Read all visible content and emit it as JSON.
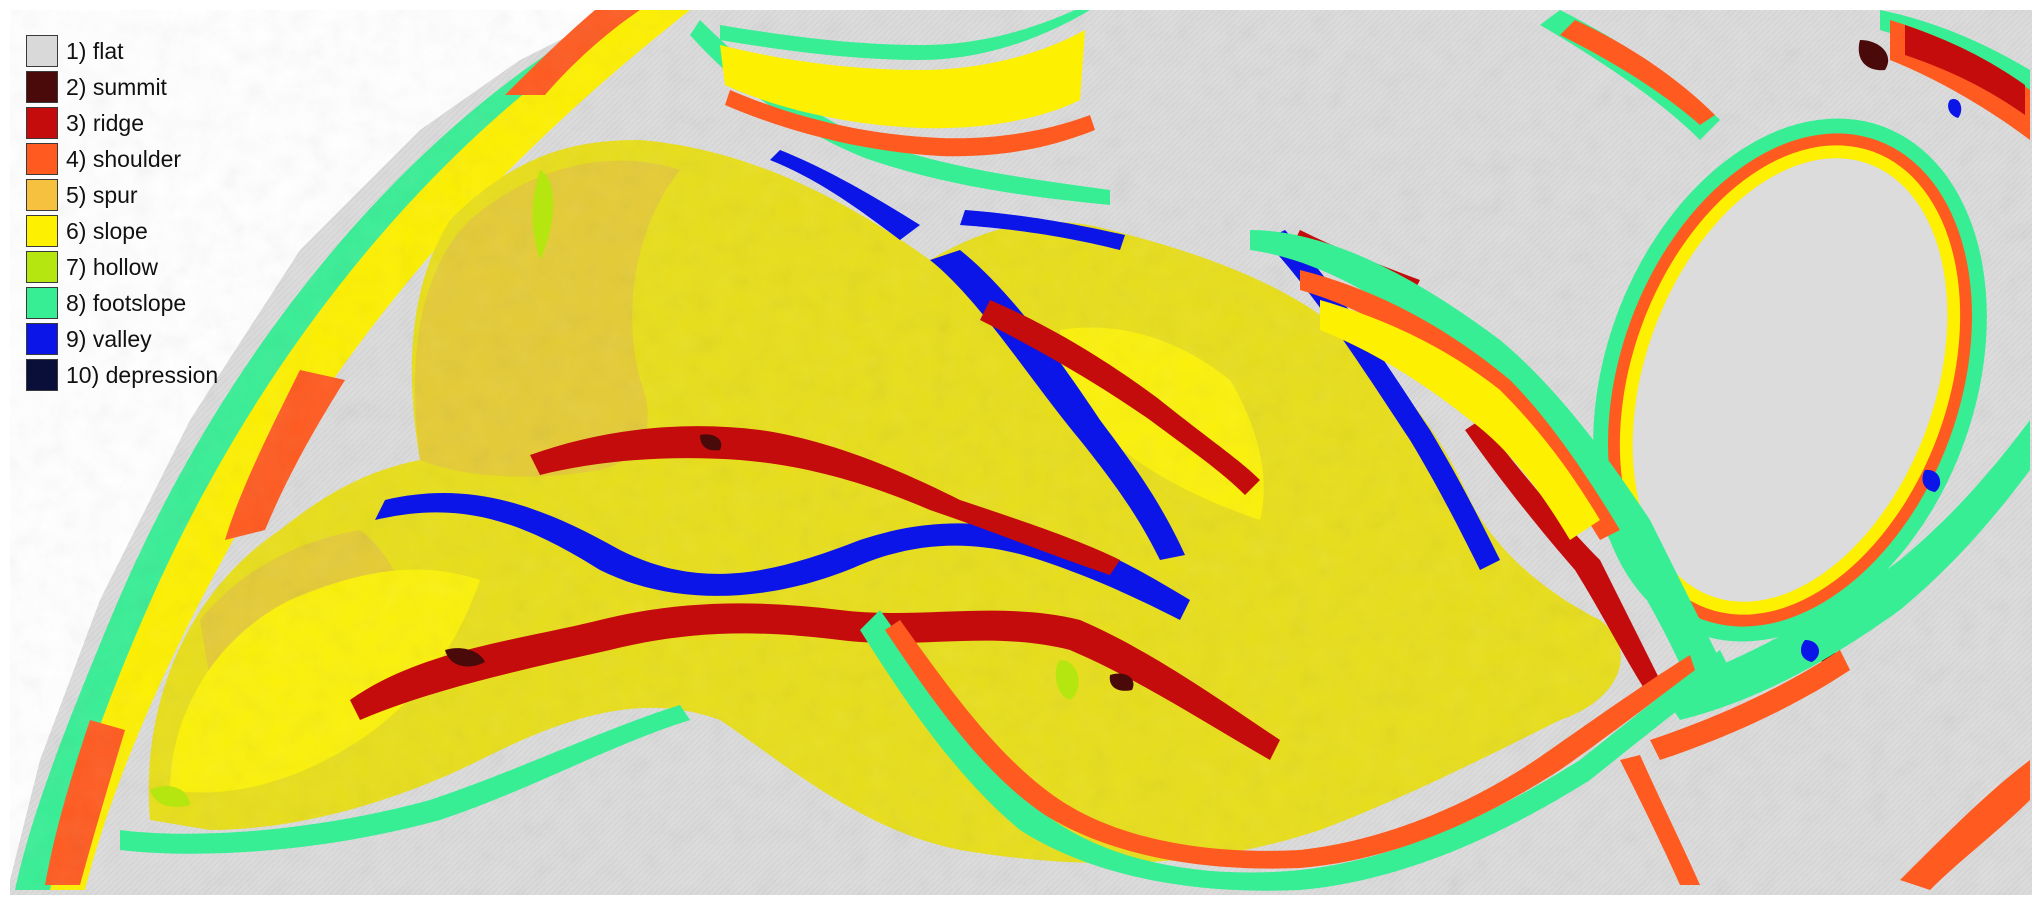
{
  "legend": {
    "items": [
      {
        "label": "1) flat",
        "color": "#d9d9d9"
      },
      {
        "label": "2) summit",
        "color": "#4a0a0a"
      },
      {
        "label": "3) ridge",
        "color": "#c40c0c"
      },
      {
        "label": "4) shoulder",
        "color": "#ff5a1f"
      },
      {
        "label": "5) spur",
        "color": "#f6c13f"
      },
      {
        "label": "6) slope",
        "color": "#fdf000"
      },
      {
        "label": "7) hollow",
        "color": "#b6e60f"
      },
      {
        "label": "8) footslope",
        "color": "#38ee95"
      },
      {
        "label": "9) valley",
        "color": "#0b15e8"
      },
      {
        "label": "10) depression",
        "color": "#0a0f3a"
      }
    ]
  }
}
